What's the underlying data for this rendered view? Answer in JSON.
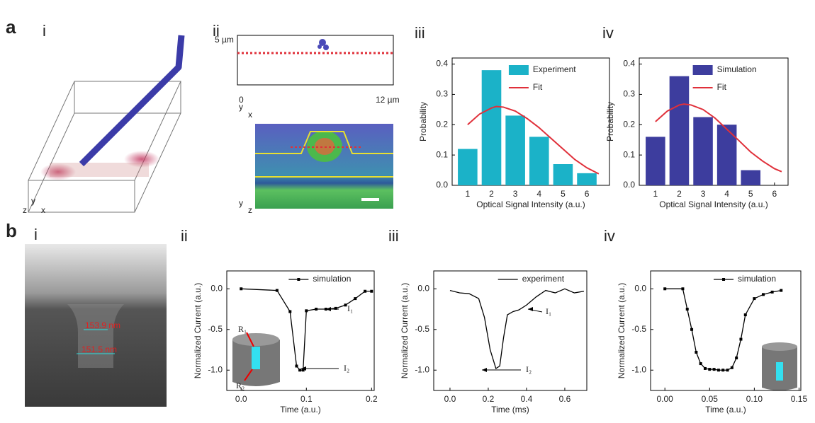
{
  "figure_labels": [
    "a",
    "b"
  ],
  "images": [
    {
      "panel_label": "i",
      "axes": [
        "y",
        "x",
        "z"
      ]
    },
    {
      "panel_label": "ii",
      "scale_labels": [
        "5 µm",
        "0",
        "12 µm"
      ],
      "axes": [
        "y",
        "x",
        "y",
        "z"
      ]
    },
    {
      "panel_label": "i",
      "measurements": [
        "153.9 nm",
        "151.5 nm"
      ]
    }
  ],
  "chart_data": [
    {
      "type": "bar",
      "panel_label": "iii",
      "xlabel": "Optical Signal Intensity (a.u.)",
      "ylabel": "Probability",
      "legend": "upper right",
      "x": [
        1,
        2,
        3,
        4,
        5,
        6
      ],
      "series": [
        {
          "name": "Experiment",
          "color": "#1bb2c8",
          "values": [
            0.12,
            0.38,
            0.23,
            0.16,
            0.07,
            0.04
          ]
        },
        {
          "name": "Fit",
          "color": "#e0303a",
          "kind": "line",
          "x": [
            1,
            1.5,
            2,
            2.2,
            2.5,
            3,
            3.5,
            4,
            4.5,
            5,
            5.5,
            6,
            6.5
          ],
          "values": [
            0.2,
            0.235,
            0.255,
            0.26,
            0.258,
            0.245,
            0.22,
            0.19,
            0.155,
            0.12,
            0.085,
            0.058,
            0.038
          ]
        }
      ],
      "xlim": [
        0.35,
        6.95
      ],
      "ylim": [
        0,
        0.42
      ],
      "xticks": [
        1,
        2,
        3,
        4,
        5,
        6
      ],
      "yticks": [
        {
          "value": 0,
          "label": "0.0"
        },
        0.1,
        0.2,
        0.3,
        0.4
      ]
    },
    {
      "type": "bar",
      "panel_label": "iv",
      "xlabel": "Optical Signal Intensity (a.u.)",
      "ylabel": "Probability",
      "legend": "upper right",
      "x": [
        1,
        2,
        3,
        4,
        5,
        6
      ],
      "series": [
        {
          "name": "Simulation",
          "color": "#3d3d9e",
          "values": [
            0.16,
            0.36,
            0.225,
            0.2,
            0.05,
            0
          ]
        },
        {
          "name": "Fit",
          "color": "#e0303a",
          "kind": "line",
          "x": [
            1,
            1.5,
            2,
            2.2,
            2.5,
            3,
            3.5,
            4,
            4.5,
            5,
            5.5,
            6,
            6.3
          ],
          "values": [
            0.21,
            0.245,
            0.265,
            0.268,
            0.265,
            0.25,
            0.222,
            0.185,
            0.148,
            0.11,
            0.08,
            0.055,
            0.045
          ]
        }
      ],
      "xlim": [
        0.32,
        6.57
      ],
      "ylim": [
        0,
        0.42
      ],
      "xticks": [
        1,
        2,
        3,
        4,
        5,
        6
      ],
      "yticks": [
        {
          "value": 0,
          "label": "0.0"
        },
        0.1,
        0.2,
        0.3,
        0.4
      ]
    },
    {
      "type": "line",
      "panel_label": "ii",
      "xlabel": "Time (a.u.)",
      "ylabel": "Normalized Current (a.u.)",
      "legend": "upper right",
      "x": [
        0,
        0.055,
        0.075,
        0.085,
        0.09,
        0.095,
        0.1,
        0.115,
        0.13,
        0.145,
        0.16,
        0.175,
        0.19,
        0.2
      ],
      "series": [
        {
          "name": "simulation",
          "color": "#000000",
          "marker": true,
          "values": [
            0,
            -0.02,
            -0.28,
            -0.95,
            -1,
            -1,
            -0.27,
            -0.25,
            -0.25,
            -0.24,
            -0.2,
            -0.12,
            -0.03,
            -0.03
          ]
        }
      ],
      "annotations": [
        "I₁",
        "I₂"
      ],
      "inset_labels": [
        "R₁",
        "R₂"
      ],
      "xlim": [
        -0.022,
        0.204
      ],
      "ylim": [
        -1.25,
        0.22
      ],
      "xticks": [
        {
          "value": 0,
          "label": "0.0"
        },
        0.1,
        0.2
      ],
      "yticks": [
        {
          "value": 0,
          "label": "0.0"
        },
        -0.5,
        {
          "value": -1,
          "label": "-1.0"
        }
      ]
    },
    {
      "type": "line",
      "panel_label": "iii",
      "xlabel": "Time (ms)",
      "ylabel": "Normalized Current (a.u.)",
      "legend": "upper right",
      "x": [
        0,
        0.05,
        0.1,
        0.15,
        0.18,
        0.21,
        0.24,
        0.26,
        0.28,
        0.3,
        0.33,
        0.36,
        0.4,
        0.45,
        0.5,
        0.55,
        0.6,
        0.65,
        0.7
      ],
      "series": [
        {
          "name": "experiment",
          "color": "#000000",
          "marker": false,
          "values": [
            -0.02,
            -0.05,
            -0.06,
            -0.12,
            -0.35,
            -0.75,
            -0.98,
            -0.95,
            -0.6,
            -0.32,
            -0.28,
            -0.26,
            -0.2,
            -0.1,
            -0.02,
            -0.05,
            0,
            -0.05,
            -0.03
          ]
        }
      ],
      "annotations": [
        "I₁",
        "I₂"
      ],
      "xlim": [
        -0.085,
        0.715
      ],
      "ylim": [
        -1.25,
        0.22
      ],
      "xticks": [
        {
          "value": 0,
          "label": "0.0"
        },
        0.2,
        0.4,
        0.6
      ],
      "yticks": [
        {
          "value": 0,
          "label": "0.0"
        },
        -0.5,
        {
          "value": -1,
          "label": "-1.0"
        }
      ]
    },
    {
      "type": "line",
      "panel_label": "iv",
      "xlabel": "Time (a.u.)",
      "ylabel": "Normalized Current (a.u.)",
      "legend": "upper right",
      "x": [
        0,
        0.02,
        0.025,
        0.03,
        0.035,
        0.04,
        0.045,
        0.05,
        0.055,
        0.06,
        0.065,
        0.07,
        0.075,
        0.08,
        0.085,
        0.09,
        0.1,
        0.11,
        0.12,
        0.13
      ],
      "series": [
        {
          "name": "simulation",
          "color": "#000000",
          "marker": true,
          "values": [
            0,
            0,
            -0.25,
            -0.5,
            -0.78,
            -0.92,
            -0.98,
            -0.99,
            -0.99,
            -1,
            -1,
            -1,
            -0.97,
            -0.85,
            -0.62,
            -0.32,
            -0.12,
            -0.07,
            -0.04,
            -0.02
          ]
        }
      ],
      "xlim": [
        -0.016,
        0.152
      ],
      "ylim": [
        -1.25,
        0.22
      ],
      "xticks": [
        {
          "value": 0,
          "label": "0.00"
        },
        0.05,
        {
          "value": 0.1,
          "label": "0.10"
        },
        0.15
      ],
      "yticks": [
        {
          "value": 0,
          "label": "0.0"
        },
        -0.5,
        {
          "value": -1,
          "label": "-1.0"
        }
      ]
    }
  ]
}
